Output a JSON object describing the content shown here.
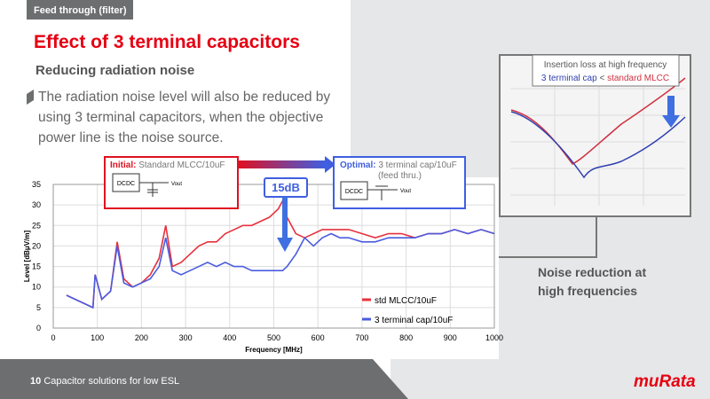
{
  "header": {
    "tag": "Feed through (filter)",
    "title": "Effect of 3 terminal capacitors",
    "subtitle": "Reducing radiation noise",
    "body": [
      "The radiation noise level will also be reduced by",
      "using 3 terminal capacitors, when the objective",
      "power line is the noise source."
    ]
  },
  "callouts": {
    "initial": {
      "label": "Initial:",
      "text": "Standard MLCC/10uF",
      "block": "DCDC",
      "out": "Vout"
    },
    "optimal": {
      "label": "Optimal:",
      "text": "3 terminal cap/10uF",
      "note": "(feed thru.)",
      "block": "DCDC",
      "out": "Vout"
    },
    "reduction": "15dB",
    "inset": {
      "title": "Insertion loss at high frequency",
      "left": "3 terminal cap",
      "op": "<",
      "right": "standard MLCC"
    },
    "noise": [
      "Noise reduction at",
      "high frequencies"
    ]
  },
  "footer": {
    "page": "10",
    "text": "Capacitor solutions for low ESL",
    "logo": "muRata"
  },
  "chart_data": {
    "type": "line",
    "xlabel": "Frequency [MHz]",
    "ylabel": "Level [dBμV/m]",
    "x": [
      30,
      50,
      70,
      90,
      95,
      110,
      130,
      145,
      160,
      180,
      200,
      220,
      240,
      255,
      270,
      290,
      310,
      330,
      350,
      370,
      390,
      410,
      430,
      450,
      470,
      490,
      510,
      520,
      530,
      550,
      570,
      590,
      610,
      630,
      650,
      670,
      700,
      730,
      760,
      790,
      820,
      850,
      880,
      910,
      940,
      970,
      1000
    ],
    "series": [
      {
        "name": "std MLCC/10uF",
        "color": "#e8303c",
        "values": [
          8,
          7,
          6,
          5,
          13,
          7,
          9,
          21,
          12,
          10,
          11,
          13,
          17,
          25,
          15,
          16,
          18,
          20,
          21,
          21,
          23,
          24,
          25,
          25,
          26,
          27,
          29,
          31,
          27,
          23,
          22,
          23,
          24,
          24,
          24,
          24,
          23,
          22,
          23,
          23,
          22,
          23,
          23,
          24,
          23,
          24,
          23
        ]
      },
      {
        "name": "3 terminal cap/10uF",
        "color": "#4a5ce0",
        "values": [
          8,
          7,
          6,
          5,
          13,
          7,
          9,
          20,
          11,
          10,
          11,
          12,
          15,
          22,
          14,
          13,
          14,
          15,
          16,
          15,
          16,
          15,
          15,
          14,
          14,
          14,
          14,
          14,
          15,
          18,
          22,
          20,
          22,
          23,
          22,
          22,
          21,
          21,
          22,
          22,
          22,
          23,
          23,
          24,
          23,
          24,
          23
        ]
      }
    ],
    "xlim": [
      0,
      1000
    ],
    "xticks": [
      0,
      100,
      200,
      300,
      400,
      500,
      600,
      700,
      800,
      900,
      1000
    ],
    "ylim": [
      0,
      35
    ],
    "yticks": [
      0,
      5,
      10,
      15,
      20,
      25,
      30,
      35
    ],
    "grid": true
  }
}
